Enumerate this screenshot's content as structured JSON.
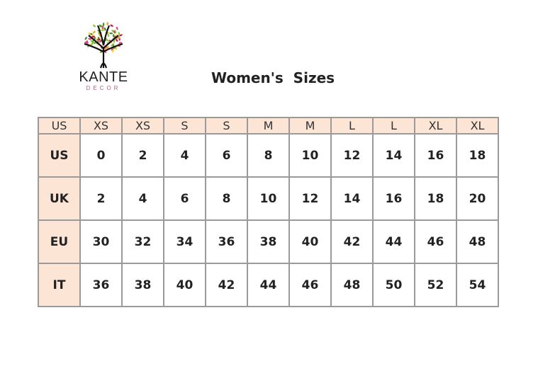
{
  "logo": {
    "title": "KANTE",
    "subtitle": "DECOR"
  },
  "title": "Women's  Sizes",
  "table": {
    "header": [
      "US",
      "XS",
      "XS",
      "S",
      "S",
      "M",
      "M",
      "L",
      "L",
      "XL",
      "XL"
    ],
    "rows": [
      {
        "label": "US",
        "values": [
          "0",
          "2",
          "4",
          "6",
          "8",
          "10",
          "12",
          "14",
          "16",
          "18"
        ]
      },
      {
        "label": "UK",
        "values": [
          "2",
          "4",
          "6",
          "8",
          "10",
          "12",
          "14",
          "16",
          "18",
          "20"
        ]
      },
      {
        "label": "EU",
        "values": [
          "30",
          "32",
          "34",
          "36",
          "38",
          "40",
          "42",
          "44",
          "46",
          "48"
        ]
      },
      {
        "label": "IT",
        "values": [
          "36",
          "38",
          "40",
          "42",
          "44",
          "46",
          "48",
          "50",
          "52",
          "54"
        ]
      }
    ]
  },
  "colors": {
    "header_bg": "#fde5d6",
    "border": "#9a9a9a"
  }
}
